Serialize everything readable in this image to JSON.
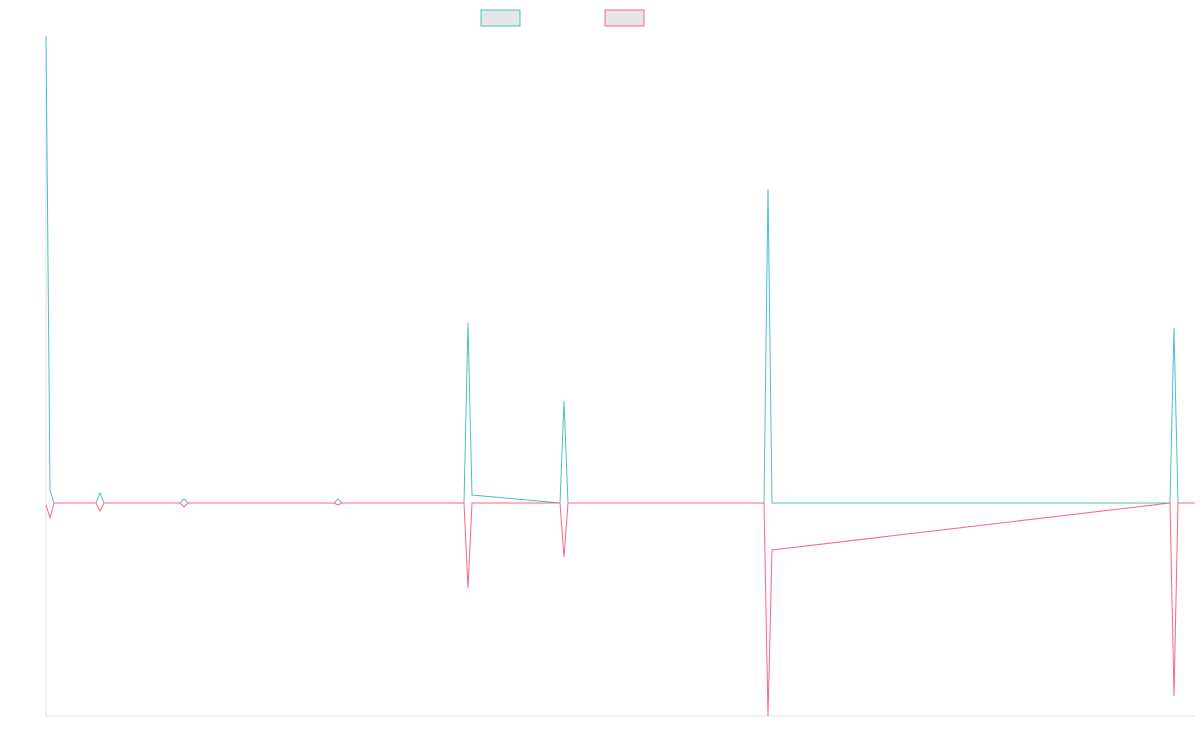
{
  "chart_data": {
    "type": "line",
    "x": [
      0,
      4,
      8,
      50,
      54,
      58,
      134,
      138,
      142,
      288,
      292,
      296,
      418,
      422,
      426,
      514,
      518,
      522,
      718,
      722,
      726,
      1124,
      1128,
      1132,
      1149
    ],
    "series": [
      {
        "color": "#4bc0c0",
        "values": [
          467,
          13,
          0,
          0,
          10,
          0,
          0,
          4,
          0,
          0,
          4,
          0,
          0,
          180,
          8,
          0,
          102,
          0,
          0,
          314,
          0,
          0,
          175,
          0,
          0
        ]
      },
      {
        "color": "#ff6384",
        "values": [
          -2,
          -15,
          0,
          0,
          -8,
          0,
          0,
          -4,
          0,
          0,
          -2,
          0,
          0,
          -85,
          0,
          0,
          -54,
          0,
          0,
          -213,
          -47,
          0,
          -193,
          0,
          0
        ]
      }
    ],
    "xlim": [
      0,
      1149
    ],
    "ylim": [
      -213,
      467
    ]
  }
}
